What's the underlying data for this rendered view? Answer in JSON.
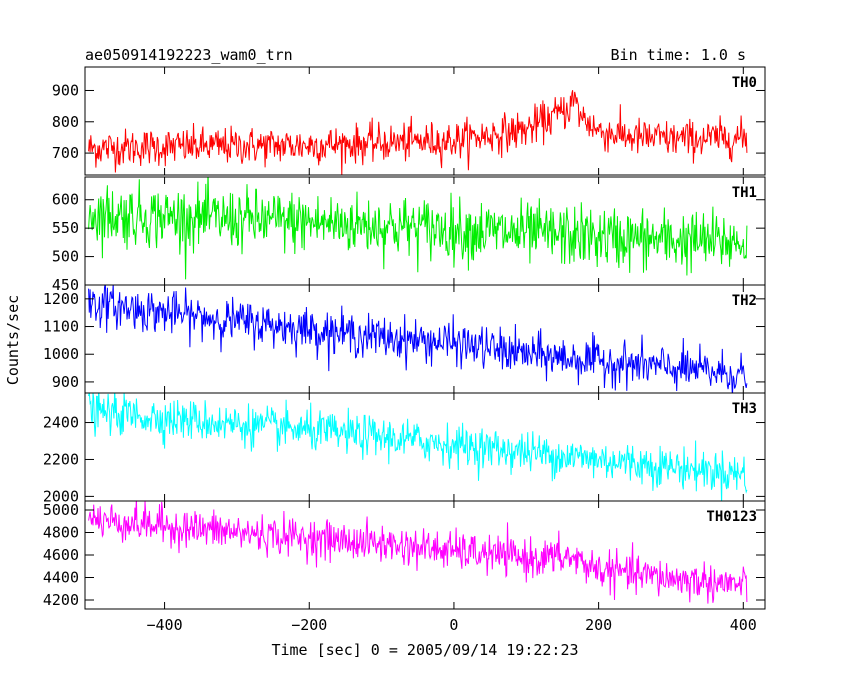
{
  "chart_data": {
    "type": "line",
    "title": "ae050914192223_wam0_trn",
    "bin_time": "Bin time: 1.0 s",
    "xlabel": "Time [sec] 0 = 2005/09/14 19:22:23",
    "ylabel": "Counts/sec",
    "xlim": [
      -510,
      430
    ],
    "x_ticks": [
      -400,
      -200,
      0,
      200,
      400
    ],
    "x_tick_labels": [
      "−400",
      "−200",
      "0",
      "200",
      "400"
    ],
    "grid": false,
    "x_range_data": [
      -505,
      405
    ],
    "series": [
      {
        "name": "TH0",
        "color": "#ff0000",
        "ylim": [
          630,
          975
        ],
        "y_ticks": [
          700,
          800,
          900
        ],
        "y_tick_labels": [
          "700",
          "800",
          "900"
        ],
        "trend_x": [
          -505,
          -400,
          -200,
          0,
          100,
          140,
          160,
          165,
          175,
          200,
          250,
          300,
          405
        ],
        "trend_y": [
          715,
          720,
          725,
          740,
          775,
          820,
          845,
          875,
          820,
          770,
          750,
          745,
          748
        ],
        "noise_sd": 30
      },
      {
        "name": "TH1",
        "color": "#00ee00",
        "ylim": [
          450,
          640
        ],
        "y_ticks": [
          450,
          500,
          550,
          600
        ],
        "y_tick_labels": [
          "450",
          "500",
          "550",
          "600"
        ],
        "trend_x": [
          -505,
          -300,
          -100,
          100,
          300,
          405
        ],
        "trend_y": [
          575,
          565,
          555,
          540,
          528,
          525
        ],
        "noise_sd": 27
      },
      {
        "name": "TH2",
        "color": "#0000ff",
        "ylim": [
          860,
          1250
        ],
        "y_ticks": [
          900,
          1000,
          1100,
          1200
        ],
        "y_tick_labels": [
          "900",
          "1000",
          "1100",
          "1200"
        ],
        "trend_x": [
          -505,
          -400,
          -300,
          -200,
          -100,
          0,
          100,
          200,
          300,
          405
        ],
        "trend_y": [
          1185,
          1150,
          1120,
          1090,
          1060,
          1040,
          1000,
          975,
          950,
          925
        ],
        "noise_sd": 38
      },
      {
        "name": "TH3",
        "color": "#00ffff",
        "ylim": [
          1975,
          2560
        ],
        "y_ticks": [
          2000,
          2200,
          2400
        ],
        "y_tick_labels": [
          "2000",
          "2200",
          "2400"
        ],
        "trend_x": [
          -505,
          -300,
          -100,
          100,
          300,
          405
        ],
        "trend_y": [
          2460,
          2390,
          2320,
          2240,
          2160,
          2120
        ],
        "noise_sd": 55
      },
      {
        "name": "TH0123",
        "color": "#ff00ff",
        "ylim": [
          4120,
          5080
        ],
        "y_ticks": [
          4200,
          4400,
          4600,
          4800,
          5000
        ],
        "y_tick_labels": [
          "4200",
          "4400",
          "4600",
          "4800",
          "5000"
        ],
        "trend_x": [
          -505,
          -300,
          -100,
          100,
          160,
          200,
          300,
          405
        ],
        "trend_y": [
          4920,
          4800,
          4700,
          4570,
          4580,
          4470,
          4390,
          4330
        ],
        "noise_sd": 85
      }
    ]
  }
}
